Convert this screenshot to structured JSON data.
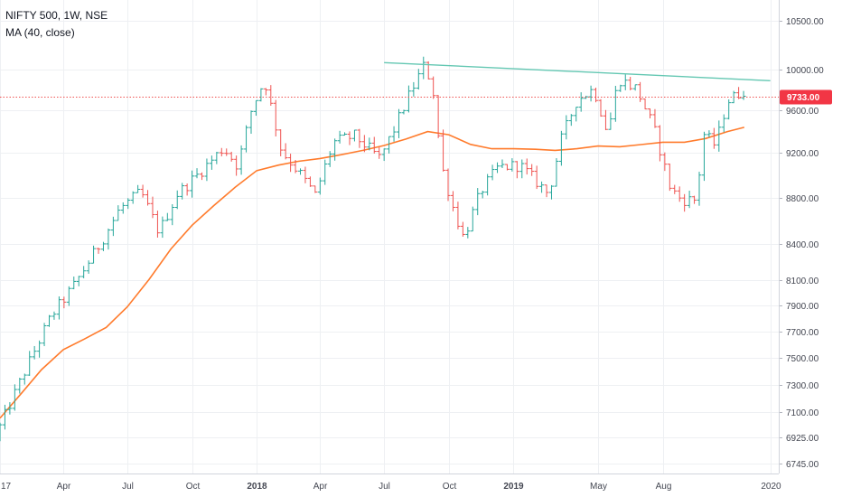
{
  "chart_data": {
    "type": "ohlc-bar",
    "title": "NIFTY 500, 1W, NSE",
    "indicator": "MA (40, close)",
    "last_price_label": "9733.00",
    "last_price": 9733,
    "y_axis": {
      "scale": "log",
      "ylim": [
        6680,
        10720
      ],
      "ticks": [
        10500,
        10000,
        9600,
        9200,
        8800,
        8400,
        8100,
        7900,
        7700,
        7500,
        7300,
        7100,
        6925,
        6745
      ],
      "tick_labels": [
        "10500.00",
        "10000.00",
        "9600.00",
        "9200.00",
        "8800.00",
        "8400.00",
        "8100.00",
        "7900.00",
        "7700.00",
        "7500.00",
        "7300.00",
        "7100.00",
        "6925.00",
        "6745.00"
      ]
    },
    "x_axis": {
      "xlim": [
        "2017-01-01",
        "2020-01-13"
      ],
      "ticks": [
        {
          "date": "2017-01-01",
          "label": "17",
          "bold": false
        },
        {
          "date": "2017-04-01",
          "label": "Apr",
          "bold": false
        },
        {
          "date": "2017-07-01",
          "label": "Jul",
          "bold": false
        },
        {
          "date": "2017-10-01",
          "label": "Oct",
          "bold": false
        },
        {
          "date": "2018-01-01",
          "label": "2018",
          "bold": true
        },
        {
          "date": "2018-04-01",
          "label": "Apr",
          "bold": false
        },
        {
          "date": "2018-07-01",
          "label": "Jul",
          "bold": false
        },
        {
          "date": "2018-10-01",
          "label": "Oct",
          "bold": false
        },
        {
          "date": "2019-01-01",
          "label": "2019",
          "bold": true
        },
        {
          "date": "2019-05-01",
          "label": "May",
          "bold": false
        },
        {
          "date": "2019-08-01",
          "label": "Aug",
          "bold": false
        },
        {
          "date": "2020-01-01",
          "label": "2020",
          "bold": false
        }
      ]
    },
    "price_anchors": [
      [
        "2017-01-01",
        7000
      ],
      [
        "2017-02-10",
        7450
      ],
      [
        "2017-03-15",
        7820
      ],
      [
        "2017-04-15",
        8050
      ],
      [
        "2017-05-25",
        8420
      ],
      [
        "2017-06-20",
        8700
      ],
      [
        "2017-07-20",
        8850
      ],
      [
        "2017-08-15",
        8500
      ],
      [
        "2017-09-10",
        8830
      ],
      [
        "2017-10-10",
        9010
      ],
      [
        "2017-11-15",
        9250
      ],
      [
        "2017-12-05",
        9080
      ],
      [
        "2017-12-25",
        9620
      ],
      [
        "2018-01-12",
        9900
      ],
      [
        "2018-02-05",
        9220
      ],
      [
        "2018-03-05",
        9000
      ],
      [
        "2018-03-25",
        8820
      ],
      [
        "2018-04-20",
        9300
      ],
      [
        "2018-05-20",
        9360
      ],
      [
        "2018-06-25",
        9150
      ],
      [
        "2018-07-15",
        9420
      ],
      [
        "2018-08-05",
        9740
      ],
      [
        "2018-08-28",
        10060
      ],
      [
        "2018-09-10",
        9750
      ],
      [
        "2018-09-20",
        9100
      ],
      [
        "2018-10-05",
        8750
      ],
      [
        "2018-10-22",
        8450
      ],
      [
        "2018-11-15",
        8850
      ],
      [
        "2018-12-10",
        9070
      ],
      [
        "2019-01-10",
        9090
      ],
      [
        "2019-02-20",
        8830
      ],
      [
        "2019-03-10",
        9330
      ],
      [
        "2019-04-01",
        9700
      ],
      [
        "2019-04-25",
        9810
      ],
      [
        "2019-05-15",
        9380
      ],
      [
        "2019-05-30",
        9910
      ],
      [
        "2019-06-25",
        9810
      ],
      [
        "2019-07-20",
        9420
      ],
      [
        "2019-08-12",
        8880
      ],
      [
        "2019-08-28",
        8780
      ],
      [
        "2019-09-18",
        8780
      ],
      [
        "2019-09-28",
        9380
      ],
      [
        "2019-10-15",
        9270
      ],
      [
        "2019-11-01",
        9690
      ],
      [
        "2019-11-25",
        9800
      ]
    ],
    "series": [
      {
        "name": "MA (40, close)",
        "color": "#ff7b2c",
        "values": [
          [
            "2017-01-01",
            7060
          ],
          [
            "2017-02-01",
            7240
          ],
          [
            "2017-03-01",
            7410
          ],
          [
            "2017-04-01",
            7560
          ],
          [
            "2017-05-01",
            7640
          ],
          [
            "2017-06-01",
            7730
          ],
          [
            "2017-07-01",
            7890
          ],
          [
            "2017-08-01",
            8110
          ],
          [
            "2017-09-01",
            8360
          ],
          [
            "2017-10-01",
            8560
          ],
          [
            "2017-11-01",
            8730
          ],
          [
            "2017-12-01",
            8890
          ],
          [
            "2018-01-01",
            9040
          ],
          [
            "2018-02-01",
            9090
          ],
          [
            "2018-03-01",
            9125
          ],
          [
            "2018-04-01",
            9150
          ],
          [
            "2018-05-01",
            9185
          ],
          [
            "2018-06-01",
            9225
          ],
          [
            "2018-07-01",
            9270
          ],
          [
            "2018-08-01",
            9330
          ],
          [
            "2018-09-01",
            9400
          ],
          [
            "2018-10-01",
            9370
          ],
          [
            "2018-11-01",
            9280
          ],
          [
            "2018-12-01",
            9240
          ],
          [
            "2019-01-01",
            9240
          ],
          [
            "2019-02-01",
            9235
          ],
          [
            "2019-03-01",
            9225
          ],
          [
            "2019-04-01",
            9240
          ],
          [
            "2019-05-01",
            9265
          ],
          [
            "2019-06-01",
            9258
          ],
          [
            "2019-07-01",
            9278
          ],
          [
            "2019-08-01",
            9300
          ],
          [
            "2019-09-01",
            9300
          ],
          [
            "2019-10-01",
            9335
          ],
          [
            "2019-11-01",
            9400
          ],
          [
            "2019-11-25",
            9440
          ]
        ]
      }
    ],
    "trend_line": {
      "color": "#63c7b2",
      "points": [
        [
          "2018-07-01",
          10070
        ],
        [
          "2020-01-01",
          9890
        ]
      ]
    },
    "colors": {
      "up": "#26a69a",
      "down": "#ef5350",
      "ma": "#ff7b2c",
      "trend": "#63c7b2",
      "price_line": "#ef5350",
      "price_tag": "#f23645",
      "grid": "#eef0f3"
    },
    "grid": true
  }
}
